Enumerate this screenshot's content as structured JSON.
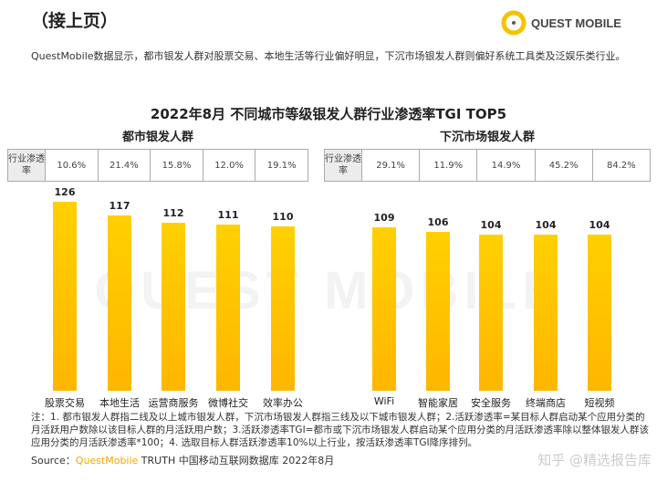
{
  "header": {
    "title": "（接上页）",
    "logo": "QUEST MOBILE"
  },
  "intro": "QuestMobile数据显示，都市银发人群对股票交易、本地生活等行业偏好明显，下沉市场银发人群则偏好系统工具类及泛娱乐类行业。",
  "watermark": "QUEST MOBILE",
  "chart_data": [
    {
      "type": "bar",
      "title": "2022年8月 不同城市等级银发人群行业渗透率TGI TOP5",
      "subtitle": "都市银发人群",
      "row_label": "行业渗透率",
      "categories": [
        "股票交易",
        "本地生活",
        "运营商服务",
        "微博社交",
        "效率办公"
      ],
      "values": [
        126,
        117,
        112,
        111,
        110
      ],
      "penetration": [
        "10.6%",
        "21.4%",
        "15.8%",
        "12.0%",
        "19.1%"
      ]
    },
    {
      "type": "bar",
      "subtitle": "下沉市场银发人群",
      "row_label": "行业渗透率",
      "categories": [
        "WiFi",
        "智能家居",
        "安全服务",
        "终端商店",
        "短视频"
      ],
      "values": [
        109,
        106,
        104,
        104,
        104
      ],
      "penetration": [
        "29.1%",
        "11.9%",
        "14.9%",
        "45.2%",
        "84.2%"
      ]
    }
  ],
  "note": "注：1. 都市银发人群指二线及以上城市银发人群，下沉市场银发人群指三线及以下城市银发人群；2.活跃渗透率=某目标人群启动某个应用分类的月活跃用户数除以该目标人群的月活跃用户数；3.活跃渗透率TGI=都市或下沉市场银发人群启动某个应用分类的月活跃渗透率除以整体银发人群该应用分类的月活跃渗透率*100；4. 选取目标人群活跃渗透率10%以上行业，按活跃渗透率TGI降序排列。",
  "source": {
    "label": "Source：",
    "brand": "QuestMobile",
    "rest": " TRUTH 中国移动互联网数据库 2022年8月"
  },
  "zhihu": "知乎 @精选报告库",
  "colors": {
    "bar": "#FFC400",
    "accent": "#F5A800"
  }
}
